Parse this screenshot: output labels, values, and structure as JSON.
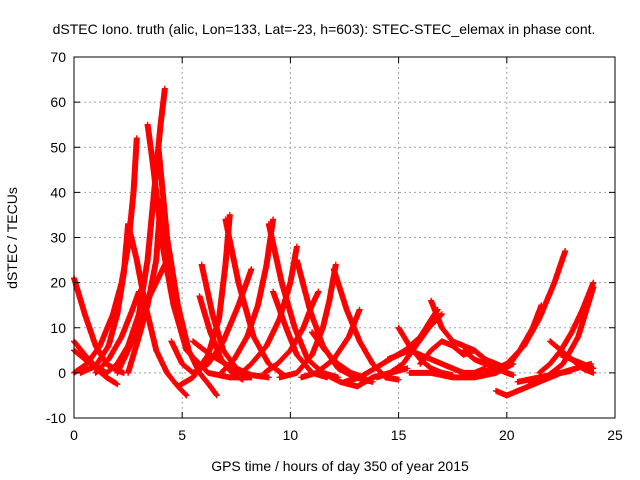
{
  "chart_data": {
    "type": "scatter",
    "title": "dSTEC Iono. truth (alic, Lon=133, Lat=-23, h=603): STEC-STEC_elemax in phase cont.",
    "xlabel": "GPS time / hours of day 350 of year 2015",
    "ylabel": "dSTEC  / TECUs",
    "xlim": [
      0,
      25
    ],
    "ylim": [
      -10,
      70
    ],
    "xticks": [
      "0",
      "5",
      "10",
      "15",
      "20",
      "25"
    ],
    "yticks": [
      "-10",
      "0",
      "10",
      "20",
      "30",
      "40",
      "50",
      "60",
      "70"
    ],
    "grid": true,
    "marker": "+",
    "color": "#ff0000",
    "series": [
      {
        "x": [
          0.0,
          0.5,
          1.0,
          1.5,
          2.0,
          2.3
        ],
        "y": [
          21,
          13,
          6,
          2,
          0.5,
          0
        ]
      },
      {
        "x": [
          0.0,
          0.5,
          1.0,
          1.5
        ],
        "y": [
          7,
          4,
          1.5,
          0
        ]
      },
      {
        "x": [
          0.0,
          0.6,
          1.2,
          1.8,
          2.2,
          2.5,
          2.75,
          2.9
        ],
        "y": [
          0,
          2,
          6,
          13,
          20,
          28,
          40,
          52
        ]
      },
      {
        "x": [
          0.3,
          1.0,
          1.6,
          2.0,
          2.3,
          2.5
        ],
        "y": [
          0,
          1.5,
          6,
          13,
          22,
          33
        ]
      },
      {
        "x": [
          2.5,
          2.9,
          3.3,
          3.8,
          4.3,
          4.8,
          5.2
        ],
        "y": [
          33,
          25,
          15,
          5,
          0,
          -3,
          -5
        ]
      },
      {
        "x": [
          0.0,
          0.5,
          1.0,
          1.5,
          2.0
        ],
        "y": [
          5,
          3,
          1,
          -1,
          -2.5
        ]
      },
      {
        "x": [
          3.4,
          3.6,
          3.8,
          4.1,
          4.6,
          5.2,
          6.2,
          7.2,
          8.2
        ],
        "y": [
          55,
          48,
          40,
          28,
          15,
          5,
          0,
          -1,
          -1
        ]
      },
      {
        "x": [
          1.5,
          2.0,
          2.5,
          3.0,
          3.4,
          3.7,
          4.0,
          4.2
        ],
        "y": [
          0,
          2,
          6,
          13,
          25,
          40,
          55,
          63
        ]
      },
      {
        "x": [
          3.9,
          4.3,
          4.8,
          5.3,
          5.8,
          6.3,
          6.6
        ],
        "y": [
          50,
          30,
          15,
          5,
          0,
          -3,
          -5
        ]
      },
      {
        "x": [
          2.5,
          3.0,
          3.4,
          3.8,
          4.0
        ],
        "y": [
          0,
          8,
          15,
          25,
          38
        ]
      },
      {
        "x": [
          2.0,
          2.6,
          3.2,
          3.8,
          4.3
        ],
        "y": [
          0,
          6,
          14,
          20,
          25
        ]
      },
      {
        "x": [
          1.0,
          1.6,
          2.2,
          2.7,
          3.0
        ],
        "y": [
          0,
          3,
          8,
          14,
          18
        ]
      },
      {
        "x": [
          4.5,
          5.0,
          5.5,
          6.2,
          6.9,
          7.6,
          8.2
        ],
        "y": [
          7,
          2,
          0,
          2,
          7,
          15,
          23
        ]
      },
      {
        "x": [
          5.8,
          6.3,
          6.8,
          7.3,
          7.8
        ],
        "y": [
          17,
          9,
          3,
          0,
          -1.5
        ]
      },
      {
        "x": [
          5.9,
          6.4,
          6.9,
          7.5,
          8.2,
          9.0
        ],
        "y": [
          24,
          13,
          5,
          1,
          -0.5,
          -1
        ]
      },
      {
        "x": [
          4.8,
          5.5,
          6.2,
          6.7,
          7.0,
          7.2
        ],
        "y": [
          -3,
          -1,
          4,
          12,
          24,
          35
        ]
      },
      {
        "x": [
          7.0,
          7.6,
          8.3,
          9.0,
          9.7
        ],
        "y": [
          34,
          20,
          8,
          2,
          -0.5
        ]
      },
      {
        "x": [
          5.5,
          6.3,
          7.0,
          7.6,
          8.0
        ],
        "y": [
          7,
          4,
          2,
          0,
          -1
        ]
      },
      {
        "x": [
          6.8,
          7.4,
          8.0,
          8.5,
          8.9,
          9.2
        ],
        "y": [
          0,
          3,
          8,
          15,
          24,
          34
        ]
      },
      {
        "x": [
          9.0,
          9.6,
          10.2,
          10.8,
          11.5,
          12.2
        ],
        "y": [
          33,
          20,
          10,
          3,
          0,
          -1
        ]
      },
      {
        "x": [
          7.5,
          8.2,
          8.9,
          9.5,
          10.0,
          10.3
        ],
        "y": [
          -1,
          2,
          6,
          12,
          20,
          28
        ]
      },
      {
        "x": [
          9.2,
          9.8,
          10.3,
          11.0,
          11.7
        ],
        "y": [
          18,
          10,
          4,
          0,
          -1
        ]
      },
      {
        "x": [
          10.3,
          10.9,
          11.5,
          12.2,
          13.0,
          13.8
        ],
        "y": [
          25,
          14,
          6,
          1,
          -1,
          -2
        ]
      },
      {
        "x": [
          8.8,
          9.4,
          10.0,
          10.6,
          11.0,
          11.3
        ],
        "y": [
          0,
          2,
          5,
          10,
          15,
          18
        ]
      },
      {
        "x": [
          9.5,
          10.3,
          11.0,
          11.5,
          11.8,
          12.1
        ],
        "y": [
          -1,
          0,
          4,
          10,
          16,
          24
        ]
      },
      {
        "x": [
          12.0,
          12.6,
          13.2,
          13.8,
          14.4,
          15.0
        ],
        "y": [
          23,
          14,
          7,
          2,
          -1,
          -1.5
        ]
      },
      {
        "x": [
          10.5,
          11.2,
          12.0,
          12.7,
          13.2
        ],
        "y": [
          -1,
          0,
          3,
          8,
          14
        ]
      },
      {
        "x": [
          11.0,
          11.6,
          12.2,
          12.8,
          13.4
        ],
        "y": [
          9,
          5,
          2,
          0,
          -1
        ]
      },
      {
        "x": [
          11.5,
          12.3,
          13.1,
          13.8,
          14.6,
          15.4
        ],
        "y": [
          0,
          -2,
          -3,
          -1,
          0,
          1
        ]
      },
      {
        "x": [
          12.5,
          13.2,
          13.9,
          14.6,
          15.3,
          16.0,
          16.8
        ],
        "y": [
          -2,
          -1,
          1,
          3,
          5,
          8,
          14
        ]
      },
      {
        "x": [
          14.0,
          14.6,
          15.2,
          15.8,
          16.4,
          17.0
        ],
        "y": [
          -1,
          0,
          2,
          6,
          10,
          13
        ]
      },
      {
        "x": [
          14.5,
          15.0,
          15.5,
          16.0,
          16.5,
          17.0,
          17.5,
          18.0,
          18.5,
          19.0
        ],
        "y": [
          3,
          4,
          5,
          4,
          3,
          2,
          1,
          0,
          0,
          1
        ]
      },
      {
        "x": [
          15.0,
          15.5,
          16.0,
          16.5,
          17.0,
          17.5
        ],
        "y": [
          10,
          6,
          3,
          1,
          0,
          -0.5
        ]
      },
      {
        "x": [
          16.5,
          17.0,
          17.5,
          18.0,
          18.5,
          19.0,
          19.5
        ],
        "y": [
          16,
          10,
          7,
          6,
          5,
          3,
          1
        ]
      },
      {
        "x": [
          16.0,
          16.5,
          17.0,
          17.5,
          18.0,
          18.5,
          19.0,
          19.5,
          20.0
        ],
        "y": [
          2,
          5,
          7,
          6,
          4,
          5,
          3,
          2,
          1
        ]
      },
      {
        "x": [
          15.5,
          16.5,
          17.5,
          18.5,
          19.5,
          20.3
        ],
        "y": [
          0,
          0,
          -1,
          -1,
          0,
          2
        ]
      },
      {
        "x": [
          18.0,
          18.5,
          19.0,
          19.5,
          20.0,
          20.3
        ],
        "y": [
          5,
          3,
          2,
          1,
          0,
          -0.5
        ]
      },
      {
        "x": [
          19.5,
          20.0,
          20.5,
          21.0,
          21.5,
          22.0,
          22.5,
          23.0
        ],
        "y": [
          -4,
          -5,
          -4,
          -3,
          -2,
          -1,
          0,
          0.5
        ]
      },
      {
        "x": [
          19.0,
          20.0,
          20.8,
          21.5,
          22.2,
          22.7
        ],
        "y": [
          0,
          2,
          6,
          12,
          20,
          27
        ]
      },
      {
        "x": [
          20.0,
          20.6,
          21.2,
          21.6
        ],
        "y": [
          1,
          5,
          10,
          15
        ]
      },
      {
        "x": [
          20.5,
          21.5,
          22.5,
          23.2,
          23.9
        ],
        "y": [
          -2,
          -1,
          0,
          1,
          2
        ]
      },
      {
        "x": [
          21.0,
          21.8,
          22.6,
          23.3,
          24.0
        ],
        "y": [
          -2,
          -1,
          2,
          8,
          19
        ]
      },
      {
        "x": [
          21.5,
          22.0,
          22.5,
          23.0,
          23.5,
          24.0
        ],
        "y": [
          0,
          2,
          5,
          9,
          14,
          20
        ]
      },
      {
        "x": [
          22.0,
          22.5,
          23.0,
          23.5,
          24.0
        ],
        "y": [
          7,
          5,
          3,
          1,
          0
        ]
      },
      {
        "x": [
          22.5,
          23.0,
          23.5,
          24.0
        ],
        "y": [
          4,
          3,
          2,
          1
        ]
      }
    ]
  }
}
